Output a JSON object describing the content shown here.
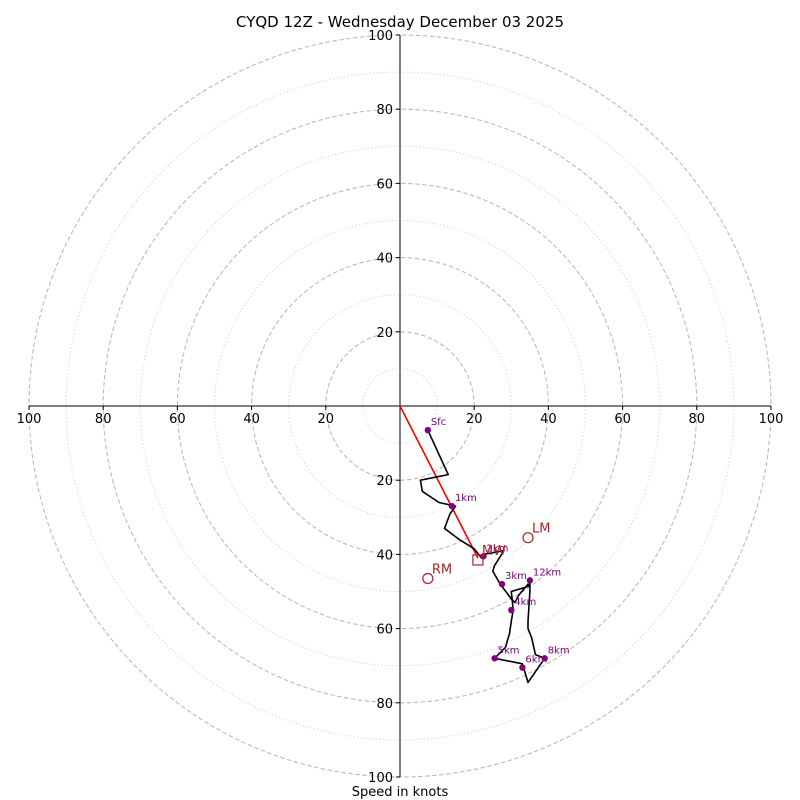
{
  "chart_data": {
    "type": "hodograph",
    "title": "CYQD 12Z - Wednesday December 03 2025",
    "xlabel": "Speed in knots",
    "xlim": [
      -100,
      100
    ],
    "ylim": [
      -100,
      100
    ],
    "rings_dashed": [
      20,
      40,
      60,
      80,
      100
    ],
    "rings_dotted": [
      10,
      30,
      50,
      70,
      90
    ],
    "x_tick_labels": [
      "100",
      "80",
      "60",
      "40",
      "20",
      "20",
      "40",
      "60",
      "80",
      "100"
    ],
    "x_tick_values": [
      -100,
      -80,
      -60,
      -40,
      -20,
      20,
      40,
      60,
      80,
      100
    ],
    "y_tick_labels": [
      "100",
      "80",
      "60",
      "40",
      "20",
      "20",
      "40",
      "60",
      "80",
      "100"
    ],
    "y_tick_values": [
      100,
      80,
      60,
      40,
      20,
      -20,
      -40,
      -60,
      -80,
      -100
    ],
    "hodograph_trace": [
      [
        7.5,
        -6.5
      ],
      [
        13,
        -18.5
      ],
      [
        5.5,
        -20
      ],
      [
        6,
        -23
      ],
      [
        10.5,
        -26
      ],
      [
        15,
        -27
      ],
      [
        13.5,
        -29
      ],
      [
        12,
        -33
      ],
      [
        16,
        -36
      ],
      [
        20,
        -38.5
      ],
      [
        22,
        -41
      ],
      [
        22.5,
        -40
      ],
      [
        28,
        -39
      ],
      [
        25.5,
        -43
      ],
      [
        25,
        -44.5
      ],
      [
        27,
        -48
      ],
      [
        30,
        -52
      ],
      [
        31,
        -53
      ],
      [
        32,
        -51
      ],
      [
        34.5,
        -48
      ],
      [
        35,
        -48.5
      ],
      [
        30,
        -50
      ],
      [
        30.5,
        -55
      ],
      [
        30,
        -58
      ],
      [
        29.5,
        -61.5
      ],
      [
        29,
        -63
      ],
      [
        28.5,
        -65
      ],
      [
        25.5,
        -68
      ],
      [
        33,
        -69.5
      ],
      [
        34.5,
        -74.5
      ],
      [
        39,
        -68
      ],
      [
        36.5,
        -67
      ],
      [
        35.5,
        -62.5
      ],
      [
        34.5,
        -60
      ],
      [
        34.5,
        -58
      ],
      [
        35,
        -50
      ],
      [
        35,
        -47
      ]
    ],
    "height_markers": [
      {
        "label": "Sfc",
        "u": 7.5,
        "v": -6.5
      },
      {
        "label": "1km",
        "u": 14,
        "v": -27
      },
      {
        "label": "2km",
        "u": 22.5,
        "v": -40.5
      },
      {
        "label": "3km",
        "u": 27.5,
        "v": -48
      },
      {
        "label": "4km",
        "u": 30,
        "v": -55
      },
      {
        "label": "5km",
        "u": 25.5,
        "v": -68
      },
      {
        "label": "6km",
        "u": 33,
        "v": -70.5
      },
      {
        "label": "8km",
        "u": 39,
        "v": -68
      },
      {
        "label": "12km",
        "u": 35,
        "v": -47
      }
    ],
    "storm_motion_vector": {
      "from": [
        0,
        0
      ],
      "to": [
        21,
        -41
      ]
    },
    "storm_motion_markers": [
      {
        "label": "LM",
        "u": 34.5,
        "v": -35.5,
        "shape": "circle"
      },
      {
        "label": "RM",
        "u": 7.5,
        "v": -46.5,
        "shape": "circle"
      },
      {
        "label": "MW",
        "u": 21,
        "v": -41.5,
        "shape": "square"
      }
    ],
    "colors": {
      "trace": "#000000",
      "markers": "#800080",
      "storm_motion": "#b22222",
      "vector": "#ff0000",
      "ring": "#bbbbbb",
      "axis": "#000000"
    }
  }
}
